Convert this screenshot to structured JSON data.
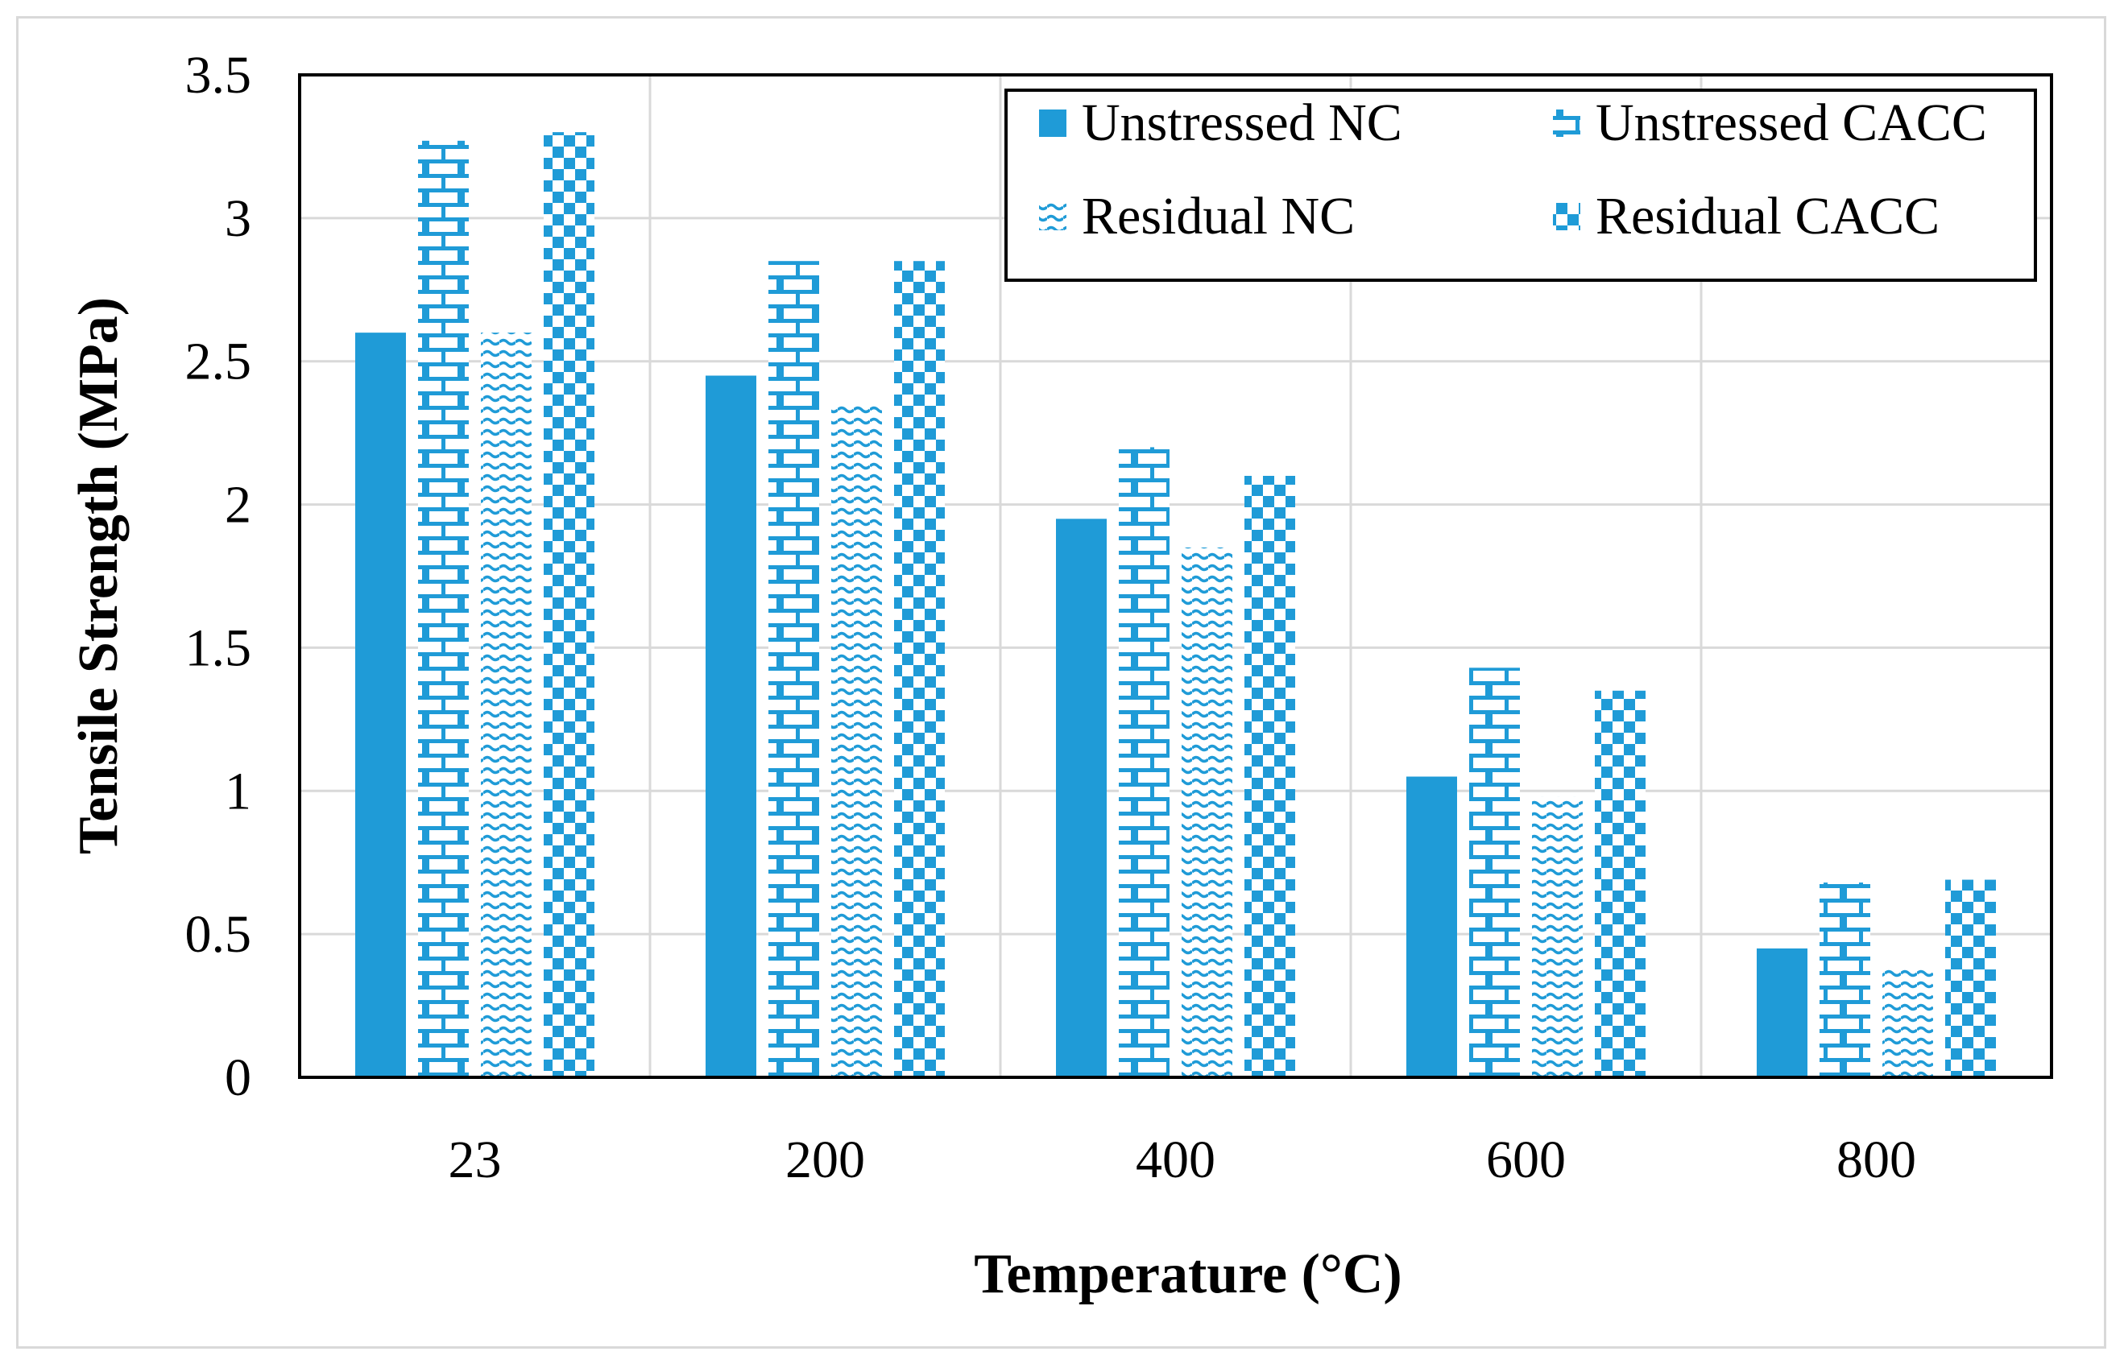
{
  "chart_data": {
    "type": "bar",
    "title": "",
    "xlabel": "Temperature (°C)",
    "ylabel": "Tensile Strength (MPa)",
    "categories": [
      "23",
      "200",
      "400",
      "600",
      "800"
    ],
    "ylim": [
      0,
      3.5
    ],
    "yticks": [
      "0",
      "0.5",
      "1",
      "1.5",
      "2",
      "2.5",
      "3",
      "3.5"
    ],
    "ytick_values": [
      0,
      0.5,
      1,
      1.5,
      2,
      2.5,
      3,
      3.5
    ],
    "grid": true,
    "legend_position": "top-right",
    "series": [
      {
        "name": "Unstressed NC",
        "pattern": "solid",
        "values": [
          2.6,
          2.45,
          1.95,
          1.05,
          0.45
        ]
      },
      {
        "name": "Unstressed CACC",
        "pattern": "brick",
        "values": [
          3.27,
          2.85,
          2.2,
          1.43,
          0.68
        ]
      },
      {
        "name": "Residual NC",
        "pattern": "wave",
        "values": [
          2.6,
          2.35,
          1.85,
          0.98,
          0.38
        ]
      },
      {
        "name": "Residual CACC",
        "pattern": "checker",
        "values": [
          3.3,
          2.85,
          2.1,
          1.35,
          0.69
        ]
      }
    ]
  },
  "colors": {
    "bar": "#1f9bd7",
    "grid": "#d9d9d9",
    "axis": "#000000"
  }
}
